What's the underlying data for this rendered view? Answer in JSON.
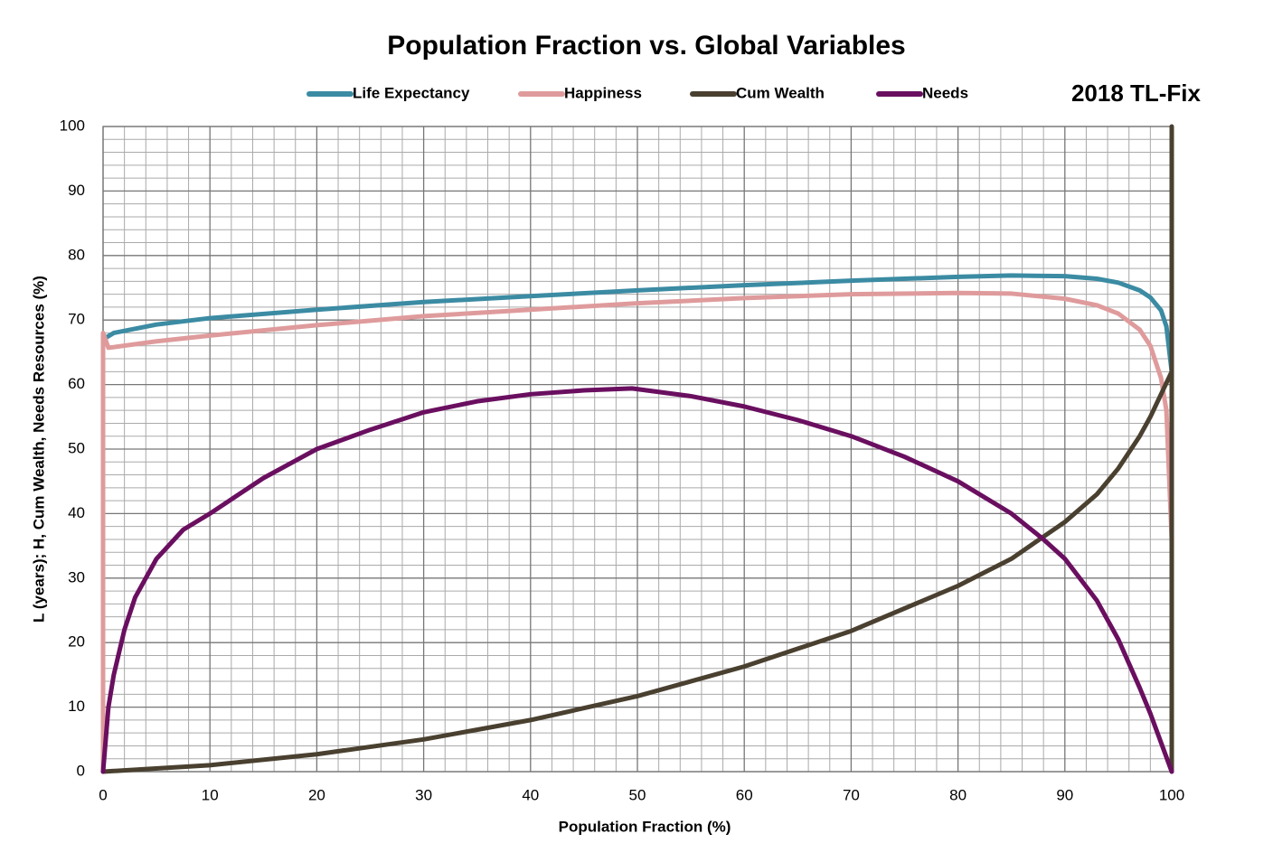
{
  "chart_data": {
    "type": "line",
    "title": "Population Fraction vs. Global Variables",
    "annotation": "2018 TL-Fix",
    "xlabel": "Population Fraction (%)",
    "ylabel": "L (years); H, Cum Wealth, Needs Resources (%)",
    "xlim": [
      0,
      100
    ],
    "ylim": [
      0,
      100
    ],
    "xticks": [
      0,
      10,
      20,
      30,
      40,
      50,
      60,
      70,
      80,
      90,
      100
    ],
    "yticks": [
      0,
      10,
      20,
      30,
      40,
      50,
      60,
      70,
      80,
      90,
      100
    ],
    "grid": true,
    "legend": "top",
    "series": [
      {
        "name": "Life Expectancy",
        "color": "#3b8ba3",
        "x": [
          0,
          1,
          5,
          10,
          20,
          30,
          40,
          50,
          60,
          70,
          80,
          85,
          90,
          93,
          95,
          97,
          98,
          99,
          99.5,
          100
        ],
        "values": [
          67,
          68,
          69.3,
          70.3,
          71.6,
          72.8,
          73.7,
          74.6,
          75.4,
          76.1,
          76.7,
          76.9,
          76.8,
          76.4,
          75.8,
          74.6,
          73.5,
          71.5,
          69,
          62
        ]
      },
      {
        "name": "Happiness",
        "color": "#df9b9c",
        "x": [
          0,
          0,
          0.5,
          1,
          5,
          10,
          20,
          30,
          40,
          50,
          60,
          70,
          80,
          85,
          90,
          93,
          95,
          97,
          98,
          99,
          99.5,
          100
        ],
        "values": [
          0,
          68,
          65.7,
          65.8,
          66.7,
          67.6,
          69.2,
          70.6,
          71.6,
          72.6,
          73.4,
          74,
          74.2,
          74.1,
          73.3,
          72.3,
          71,
          68.5,
          66,
          61,
          56,
          36
        ]
      },
      {
        "name": "Cum Wealth",
        "color": "#4a4030",
        "x": [
          0,
          10,
          20,
          30,
          40,
          50,
          60,
          70,
          80,
          85,
          90,
          93,
          95,
          97,
          98,
          99,
          100,
          100,
          100
        ],
        "values": [
          0,
          1,
          2.7,
          5,
          8,
          11.7,
          16.3,
          21.8,
          28.8,
          33,
          38.7,
          43,
          47,
          52,
          55,
          58.5,
          62,
          100,
          0
        ]
      },
      {
        "name": "Needs",
        "color": "#6a0f60",
        "x": [
          0,
          0.5,
          1,
          2,
          3,
          5,
          7.5,
          10,
          15,
          20,
          25,
          30,
          35,
          40,
          45,
          49.5,
          55,
          60,
          65,
          70,
          75,
          80,
          85,
          88,
          90,
          93,
          95,
          97,
          98,
          99,
          100
        ],
        "values": [
          0,
          10,
          15,
          22,
          27,
          33,
          37.5,
          40,
          45.5,
          50,
          53,
          55.7,
          57.4,
          58.5,
          59.1,
          59.4,
          58.2,
          56.6,
          54.5,
          52,
          48.8,
          45,
          40,
          36,
          33,
          26.5,
          20.5,
          13,
          9,
          4.5,
          0
        ]
      }
    ]
  }
}
